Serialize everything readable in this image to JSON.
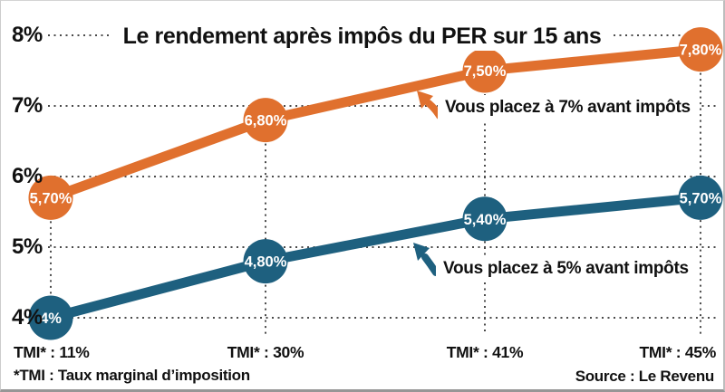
{
  "title": "Le rendement après impôs du PER sur 15 ans",
  "footnote": "*TMI : Taux marginal d’imposition",
  "source": "Source : Le Revenu",
  "colors": {
    "orange": "#E0702E",
    "blue": "#1E607F",
    "grid": "#4a4a4a",
    "text": "#111111",
    "background": "#ffffff"
  },
  "chart_data": {
    "type": "line",
    "title": "Le rendement après impôs du PER sur 15 ans",
    "categories": [
      "TMI* : 11%",
      "TMI* : 30%",
      "TMI* : 41%",
      "TMI* : 45%"
    ],
    "y_ticks": [
      "8%",
      "7%",
      "6%",
      "5%",
      "4%"
    ],
    "y_tick_values": [
      8,
      7,
      6,
      5,
      4
    ],
    "ylim": [
      4,
      8
    ],
    "grid": "dotted",
    "legend_position": "inline-annotations",
    "series": [
      {
        "name": "placement-7-pourcent",
        "annotation": "Vous placez à 7% avant impôts",
        "color": "#E0702E",
        "values": [
          5.7,
          6.8,
          7.5,
          7.8
        ],
        "labels": [
          "5,70%",
          "6,80%",
          "7,50%",
          "7,80%"
        ]
      },
      {
        "name": "placement-5-pourcent",
        "annotation": "Vous placez à 5% avant impôts",
        "color": "#1E607F",
        "values": [
          4.0,
          4.8,
          5.4,
          5.7
        ],
        "labels": [
          "4%",
          "4,80%",
          "5,40%",
          "5,70%"
        ]
      }
    ]
  }
}
